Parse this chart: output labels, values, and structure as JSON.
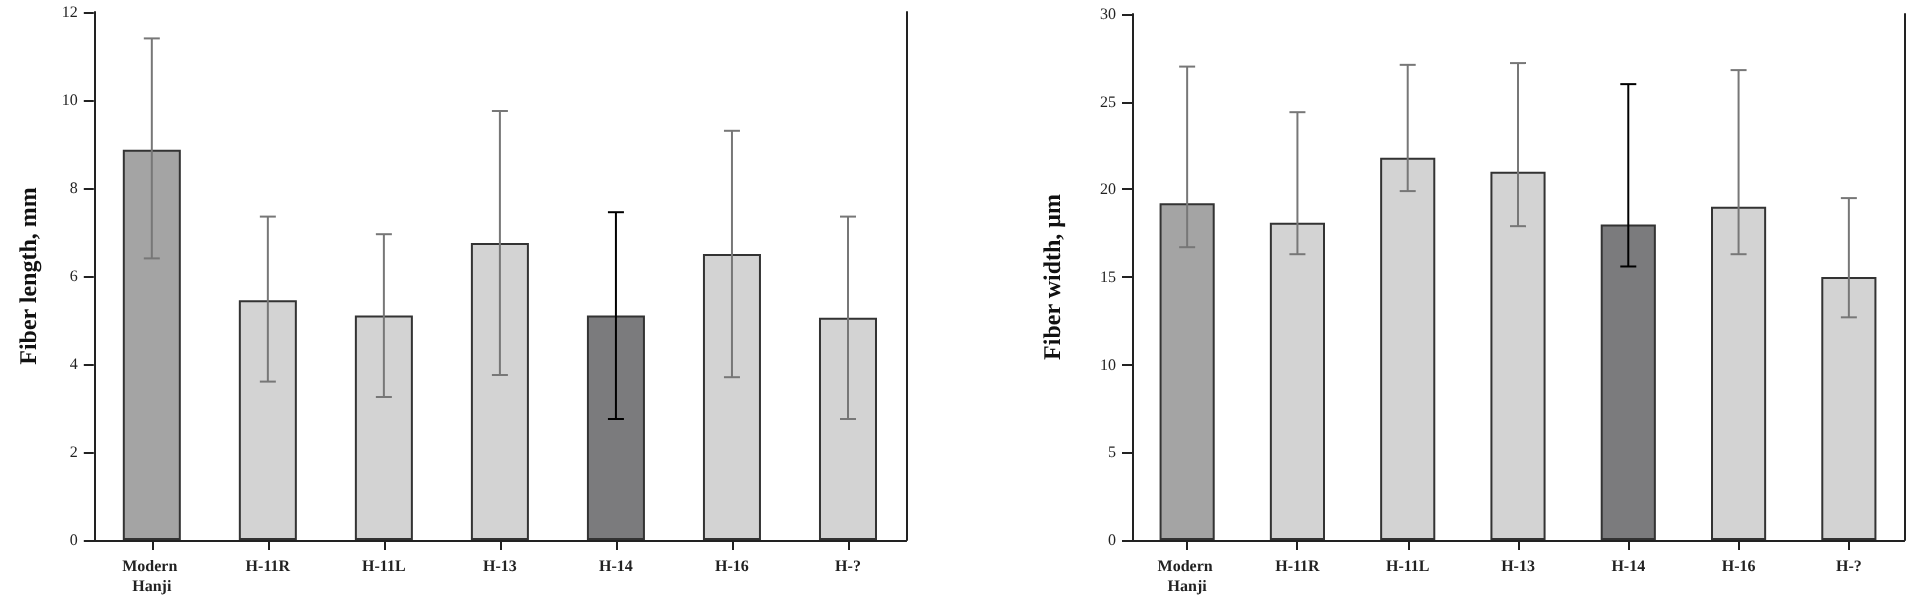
{
  "chart_data": [
    {
      "type": "bar",
      "ylabel": "Fiber length, mm",
      "categories": [
        "Modern Hanji",
        "H-11R",
        "H-11L",
        "H-13",
        "H-14",
        "H-16",
        "H-?"
      ],
      "values": [
        8.87,
        5.45,
        5.1,
        6.75,
        5.1,
        6.5,
        5.05
      ],
      "errors": [
        [
          6.4,
          11.4
        ],
        [
          3.6,
          7.35
        ],
        [
          3.25,
          6.95
        ],
        [
          3.75,
          9.75
        ],
        [
          2.75,
          7.45
        ],
        [
          3.7,
          9.3
        ],
        [
          2.75,
          7.35
        ]
      ],
      "colors": [
        "#a4a4a4",
        "#d3d3d3",
        "#d3d3d3",
        "#d3d3d3",
        "#7b7b7d",
        "#d3d3d3",
        "#d3d3d3"
      ],
      "ylim": [
        0,
        12
      ],
      "yticks": [
        0,
        2,
        4,
        6,
        8,
        10,
        12
      ],
      "grid": false
    },
    {
      "type": "bar",
      "ylabel": "Fiber width, μm",
      "categories": [
        "Modern Hanji",
        "H-11R",
        "H-11L",
        "H-13",
        "H-14",
        "H-16",
        "H-?"
      ],
      "values": [
        19.2,
        18.1,
        21.8,
        21.0,
        18.0,
        19.0,
        15.0
      ],
      "errors": [
        [
          16.7,
          27.0
        ],
        [
          16.3,
          24.4
        ],
        [
          19.9,
          27.1
        ],
        [
          17.9,
          27.2
        ],
        [
          15.6,
          26.0
        ],
        [
          16.3,
          26.8
        ],
        [
          12.7,
          19.5
        ]
      ],
      "colors": [
        "#a4a4a4",
        "#d3d3d3",
        "#d3d3d3",
        "#d3d3d3",
        "#7b7b7d",
        "#d3d3d3",
        "#d3d3d3"
      ],
      "ylim": [
        0,
        30
      ],
      "yticks": [
        0,
        5,
        10,
        15,
        20,
        25,
        30
      ],
      "grid": false
    }
  ]
}
